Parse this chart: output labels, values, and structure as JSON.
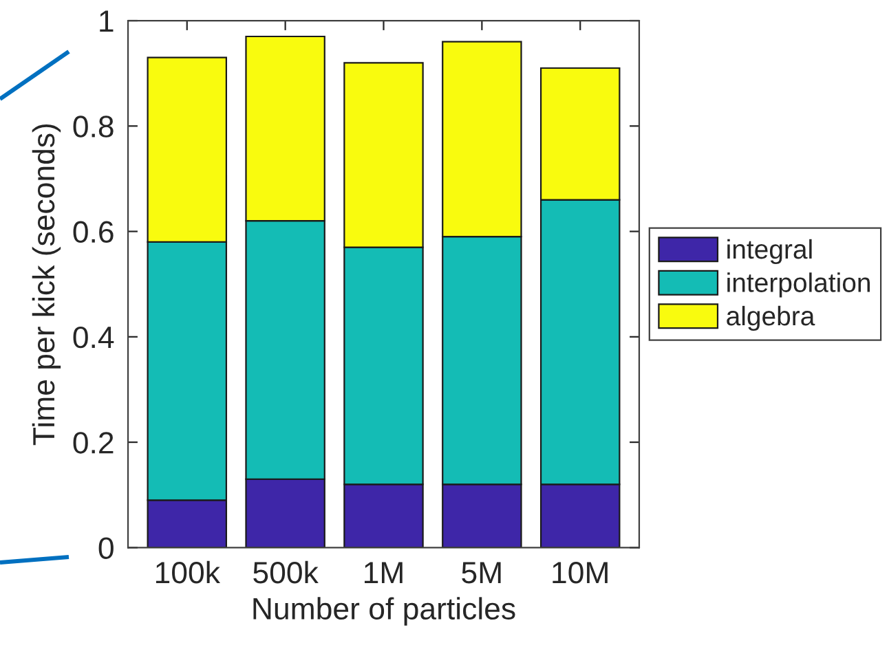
{
  "chart_data": {
    "type": "bar",
    "xlabel": "Number of particles",
    "ylabel": "Time per kick (seconds)",
    "categories": [
      "100k",
      "500k",
      "1M",
      "5M",
      "10M"
    ],
    "series": [
      {
        "name": "integral",
        "color": "#3e26a8",
        "values": [
          0.09,
          0.13,
          0.12,
          0.12,
          0.12
        ]
      },
      {
        "name": "interpolation",
        "color": "#14bcb5",
        "values": [
          0.49,
          0.49,
          0.45,
          0.47,
          0.54
        ]
      },
      {
        "name": "algebra",
        "color": "#f9fb0e",
        "values": [
          0.35,
          0.35,
          0.35,
          0.37,
          0.25
        ]
      }
    ],
    "stacked": true,
    "ylim": [
      0,
      1
    ],
    "yticks": [
      0,
      0.2,
      0.4,
      0.6,
      0.8,
      1
    ],
    "legend": "right"
  }
}
